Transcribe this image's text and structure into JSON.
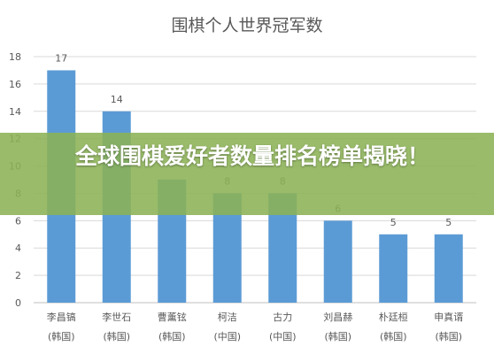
{
  "chart_data": {
    "type": "bar",
    "title": "围棋个人世界冠军数",
    "categories": [
      "李昌镐",
      "李世石",
      "曹薰铉",
      "柯洁",
      "古力",
      "刘昌赫",
      "朴廷桓",
      "申真谞"
    ],
    "countries": [
      "(韩国)",
      "(韩国)",
      "(韩国)",
      "(中国)",
      "(中国)",
      "(韩国)",
      "(韩国)",
      "(韩国)"
    ],
    "values": [
      17,
      14,
      9,
      8,
      8,
      6,
      5,
      5
    ],
    "data_labels": [
      "17",
      "14",
      "",
      "8",
      "8",
      "6",
      "5",
      "5"
    ],
    "ylim": [
      0,
      18
    ],
    "yticks": [
      0,
      2,
      4,
      6,
      8,
      10,
      12,
      14,
      16,
      18
    ],
    "grid": true,
    "bar_color": "#5b9bd5"
  },
  "banner": {
    "text": "全球围棋爱好者数量排名榜单揭晓！",
    "color": "#8bb255"
  }
}
